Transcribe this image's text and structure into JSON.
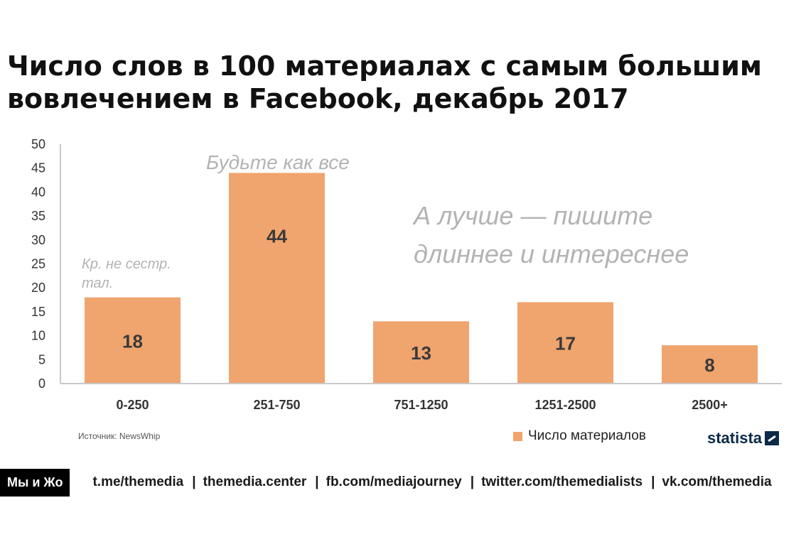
{
  "title_lines": [
    "Число слов в 100 материалах с самым большим",
    "вовлечением в Facebook, декабрь 2017"
  ],
  "colors": {
    "bar": "#f0a46e",
    "axis": "#c8c8c8",
    "note": "#b3b3b3",
    "brand": "#0b2a4a"
  },
  "chart_data": {
    "type": "bar",
    "categories": [
      "0-250",
      "251-750",
      "751-1250",
      "1251-2500",
      "2500+"
    ],
    "series": [
      {
        "name": "Число материалов",
        "values": [
          18,
          44,
          13,
          17,
          8
        ]
      }
    ],
    "yticks": [
      0,
      5,
      10,
      15,
      20,
      25,
      30,
      35,
      40,
      45,
      50
    ],
    "ylim": [
      0,
      50
    ],
    "legend": "bottom-right",
    "grid": false,
    "annotations": [
      {
        "category": "0-250",
        "lines": [
          "Кр. не сестр.",
          "тал."
        ]
      },
      {
        "category": "251-750",
        "lines": [
          "Будьте как все"
        ]
      },
      {
        "category": "1251-2500",
        "lines": [
          "А лучше — пишите",
          "длиннее и интереснее"
        ]
      }
    ]
  },
  "source": "Источник: NewsWhip",
  "legend_label": "Число материалов",
  "brand": "statista",
  "footer": {
    "badge": "Мы и Жо",
    "links": [
      "t.me/themedia",
      "themedia.center",
      "fb.com/mediajourney",
      "twitter.com/themedialists",
      "vk.com/themedia"
    ],
    "separator": "|"
  }
}
